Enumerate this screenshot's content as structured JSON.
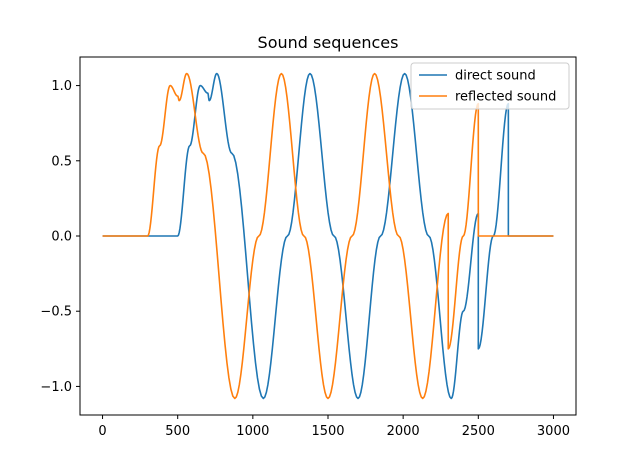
{
  "chart_data": {
    "type": "line",
    "title": "Sound sequences",
    "xlabel": "",
    "ylabel": "",
    "xlim": [
      -150,
      3150
    ],
    "ylim": [
      -1.19,
      1.19
    ],
    "xticks": [
      0,
      500,
      1000,
      1500,
      2000,
      2500,
      3000
    ],
    "xtick_labels": [
      "0",
      "500",
      "1000",
      "1500",
      "2000",
      "2500",
      "3000"
    ],
    "yticks": [
      -1.0,
      -0.5,
      0.0,
      0.5,
      1.0
    ],
    "ytick_labels": [
      "−1.0",
      "−0.5",
      "0.0",
      "0.5",
      "1.0"
    ],
    "grid": false,
    "legend_position": "top-right",
    "series": [
      {
        "name": "direct sound",
        "color": "#1f77b4",
        "x": [
          0,
          500,
          500,
          580,
          650,
          700,
          710,
          760,
          860,
          1070,
          1230,
          1380,
          1540,
          1700,
          1850,
          2010,
          2170,
          2320,
          2400,
          2500,
          2500,
          2600,
          2700,
          2700,
          3000
        ],
        "y": [
          0.0,
          0.0,
          0.0,
          0.6,
          1.0,
          0.95,
          0.9,
          1.08,
          0.55,
          -1.08,
          0.0,
          1.08,
          0.0,
          -1.08,
          0.0,
          1.08,
          0.0,
          -1.08,
          -0.5,
          0.15,
          -0.75,
          0.0,
          0.88,
          0.0,
          0.0
        ]
      },
      {
        "name": "reflected sound",
        "color": "#ff7f0e",
        "x": [
          0,
          300,
          300,
          380,
          450,
          500,
          510,
          560,
          670,
          880,
          1040,
          1190,
          1340,
          1500,
          1660,
          1810,
          1970,
          2130,
          2300,
          2300,
          2400,
          2500,
          2500,
          3000
        ],
        "y": [
          0.0,
          0.0,
          0.0,
          0.6,
          1.0,
          0.93,
          0.9,
          1.08,
          0.55,
          -1.08,
          0.0,
          1.08,
          0.0,
          -1.08,
          0.0,
          1.08,
          0.0,
          -1.08,
          0.15,
          -0.75,
          0.0,
          0.88,
          0.0,
          0.0
        ]
      }
    ]
  }
}
